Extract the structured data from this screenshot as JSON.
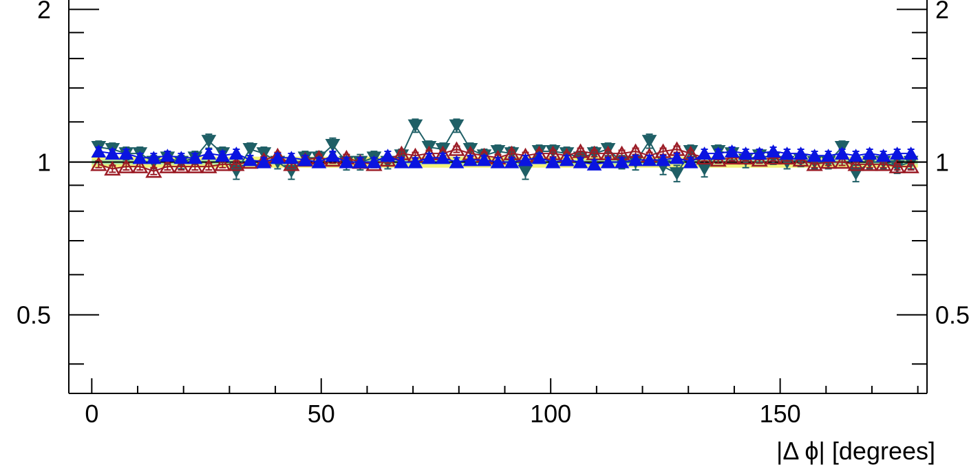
{
  "chart_data": {
    "type": "scatter",
    "title": "",
    "xlabel": "|Δ ϕ| [degrees]",
    "ylabel": "",
    "xlim": [
      -5,
      182
    ],
    "ylim": [
      0.35,
      2.1
    ],
    "y_scale": "log",
    "grid": false,
    "reference_line": 1,
    "x_major_ticks": [
      0,
      50,
      100,
      150
    ],
    "x_tick_labels": [
      "0",
      "50",
      "100",
      "150"
    ],
    "y_major_ticks": [
      0.5,
      1,
      2
    ],
    "y_tick_labels": [
      "0.5",
      "1",
      "2"
    ],
    "y_minor_ticks": [
      0.4,
      0.6,
      0.7,
      0.8,
      0.9,
      1.2,
      1.4,
      1.6,
      1.8
    ],
    "bands": [
      {
        "color": "#a6e3a6",
        "ylow": 0.99,
        "yhigh": 1.01
      },
      {
        "color": "#f2f27a",
        "ylow": 0.975,
        "yhigh": 0.99
      },
      {
        "color": "#f2f27a",
        "ylow": 1.01,
        "yhigh": 1.025
      }
    ],
    "series": [
      {
        "color": "#1f5f66",
        "marker": "triangle-down",
        "filled": true,
        "x": [
          1.5,
          4.5,
          7.5,
          10.5,
          13.5,
          16.5,
          19.5,
          22.5,
          25.5,
          28.5,
          31.5,
          34.5,
          37.5,
          40.5,
          43.5,
          46.5,
          49.5,
          52.5,
          55.5,
          58.5,
          61.5,
          64.5,
          67.5,
          70.5,
          73.5,
          76.5,
          79.5,
          82.5,
          85.5,
          88.5,
          91.5,
          94.5,
          97.5,
          100.5,
          103.5,
          106.5,
          109.5,
          112.5,
          115.5,
          118.5,
          121.5,
          124.5,
          127.5,
          130.5,
          133.5,
          136.5,
          139.5,
          142.5,
          145.5,
          148.5,
          151.5,
          154.5,
          157.5,
          160.5,
          163.5,
          166.5,
          169.5,
          172.5,
          175.5,
          178.5
        ],
        "y": [
          1.07,
          1.06,
          1.04,
          1.04,
          1.0,
          1.02,
          1.0,
          1.02,
          1.1,
          1.04,
          0.96,
          1.06,
          1.04,
          1.0,
          0.96,
          1.02,
          1.02,
          1.08,
          1.0,
          1.0,
          1.02,
          1.0,
          1.03,
          1.18,
          1.07,
          1.06,
          1.18,
          1.06,
          1.03,
          1.05,
          1.04,
          0.96,
          1.05,
          1.05,
          1.04,
          1.02,
          1.04,
          1.06,
          1.0,
          1.0,
          1.1,
          0.98,
          0.95,
          1.05,
          0.97,
          1.05,
          1.04,
          1.01,
          1.03,
          1.02,
          1.0,
          1.01,
          1.0,
          1.0,
          1.07,
          0.95,
          1.0,
          1.0,
          0.98,
          1.0
        ],
        "yerr": [
          0.03,
          0.03,
          0.03,
          0.03,
          0.03,
          0.03,
          0.03,
          0.03,
          0.035,
          0.03,
          0.035,
          0.03,
          0.03,
          0.03,
          0.035,
          0.03,
          0.03,
          0.035,
          0.035,
          0.035,
          0.03,
          0.03,
          0.03,
          0.035,
          0.03,
          0.03,
          0.035,
          0.03,
          0.03,
          0.03,
          0.03,
          0.035,
          0.03,
          0.03,
          0.03,
          0.03,
          0.03,
          0.03,
          0.03,
          0.035,
          0.035,
          0.035,
          0.035,
          0.03,
          0.035,
          0.03,
          0.03,
          0.035,
          0.03,
          0.03,
          0.03,
          0.03,
          0.03,
          0.03,
          0.03,
          0.035,
          0.03,
          0.03,
          0.03,
          0.03
        ]
      },
      {
        "color": "#9b1c26",
        "marker": "triangle-up",
        "filled": false,
        "x": [
          1.5,
          4.5,
          7.5,
          10.5,
          13.5,
          16.5,
          19.5,
          22.5,
          25.5,
          28.5,
          31.5,
          34.5,
          37.5,
          40.5,
          43.5,
          46.5,
          49.5,
          52.5,
          55.5,
          58.5,
          61.5,
          64.5,
          67.5,
          70.5,
          73.5,
          76.5,
          79.5,
          82.5,
          85.5,
          88.5,
          91.5,
          94.5,
          97.5,
          100.5,
          103.5,
          106.5,
          109.5,
          112.5,
          115.5,
          118.5,
          121.5,
          124.5,
          127.5,
          130.5,
          133.5,
          136.5,
          139.5,
          142.5,
          145.5,
          148.5,
          151.5,
          154.5,
          157.5,
          160.5,
          163.5,
          166.5,
          169.5,
          172.5,
          175.5,
          178.5
        ],
        "y": [
          0.99,
          0.97,
          0.98,
          0.98,
          0.96,
          0.98,
          0.98,
          0.98,
          0.98,
          0.99,
          0.99,
          1.0,
          1.01,
          1.03,
          0.99,
          1.01,
          1.02,
          1.01,
          1.02,
          1.0,
          0.99,
          1.01,
          1.04,
          1.03,
          1.04,
          1.04,
          1.06,
          1.04,
          1.03,
          1.02,
          1.04,
          1.03,
          1.04,
          1.04,
          1.03,
          1.05,
          1.04,
          1.04,
          1.04,
          1.05,
          1.03,
          1.05,
          1.06,
          1.04,
          1.02,
          1.01,
          1.02,
          1.02,
          1.01,
          1.02,
          1.02,
          1.01,
          0.99,
          1.0,
          1.0,
          0.99,
          0.99,
          0.99,
          0.98,
          0.98
        ],
        "yerr": [
          0.015,
          0.015,
          0.015,
          0.015,
          0.015,
          0.015,
          0.015,
          0.015,
          0.015,
          0.015,
          0.015,
          0.015,
          0.015,
          0.015,
          0.015,
          0.015,
          0.015,
          0.015,
          0.015,
          0.015,
          0.015,
          0.015,
          0.015,
          0.015,
          0.015,
          0.015,
          0.015,
          0.015,
          0.015,
          0.015,
          0.015,
          0.015,
          0.015,
          0.015,
          0.015,
          0.015,
          0.015,
          0.015,
          0.015,
          0.015,
          0.015,
          0.015,
          0.015,
          0.015,
          0.015,
          0.015,
          0.015,
          0.015,
          0.015,
          0.015,
          0.015,
          0.015,
          0.015,
          0.015,
          0.015,
          0.015,
          0.015,
          0.015,
          0.015,
          0.015
        ]
      },
      {
        "color": "#0a14e0",
        "marker": "triangle-up",
        "filled": true,
        "x": [
          1.5,
          4.5,
          7.5,
          10.5,
          13.5,
          16.5,
          19.5,
          22.5,
          25.5,
          28.5,
          31.5,
          34.5,
          37.5,
          40.5,
          43.5,
          46.5,
          49.5,
          52.5,
          55.5,
          58.5,
          61.5,
          64.5,
          67.5,
          70.5,
          73.5,
          76.5,
          79.5,
          82.5,
          85.5,
          88.5,
          91.5,
          94.5,
          97.5,
          100.5,
          103.5,
          106.5,
          109.5,
          112.5,
          115.5,
          118.5,
          121.5,
          124.5,
          127.5,
          130.5,
          133.5,
          136.5,
          139.5,
          142.5,
          145.5,
          148.5,
          151.5,
          154.5,
          157.5,
          160.5,
          163.5,
          166.5,
          169.5,
          172.5,
          175.5,
          178.5
        ],
        "y": [
          1.05,
          1.04,
          1.04,
          1.02,
          1.02,
          1.03,
          1.02,
          1.02,
          1.04,
          1.03,
          1.04,
          1.01,
          1.0,
          1.02,
          1.02,
          1.01,
          1.0,
          1.03,
          1.0,
          1.0,
          1.0,
          1.03,
          1.0,
          1.0,
          1.02,
          1.02,
          1.0,
          1.01,
          1.01,
          1.0,
          1.0,
          1.01,
          1.02,
          1.0,
          1.01,
          1.0,
          0.99,
          1.0,
          1.0,
          1.01,
          1.01,
          1.01,
          1.02,
          1.0,
          1.04,
          1.04,
          1.05,
          1.04,
          1.04,
          1.05,
          1.04,
          1.04,
          1.03,
          1.03,
          1.04,
          1.03,
          1.04,
          1.03,
          1.04,
          1.04
        ],
        "yerr": [
          0.02,
          0.02,
          0.02,
          0.02,
          0.02,
          0.02,
          0.02,
          0.02,
          0.02,
          0.02,
          0.02,
          0.02,
          0.02,
          0.02,
          0.02,
          0.02,
          0.02,
          0.02,
          0.02,
          0.02,
          0.02,
          0.02,
          0.02,
          0.02,
          0.02,
          0.02,
          0.02,
          0.02,
          0.02,
          0.02,
          0.02,
          0.02,
          0.02,
          0.02,
          0.02,
          0.02,
          0.02,
          0.02,
          0.02,
          0.02,
          0.02,
          0.02,
          0.02,
          0.02,
          0.02,
          0.02,
          0.02,
          0.02,
          0.02,
          0.02,
          0.02,
          0.02,
          0.02,
          0.02,
          0.02,
          0.02,
          0.02,
          0.02,
          0.02,
          0.02
        ]
      }
    ]
  }
}
